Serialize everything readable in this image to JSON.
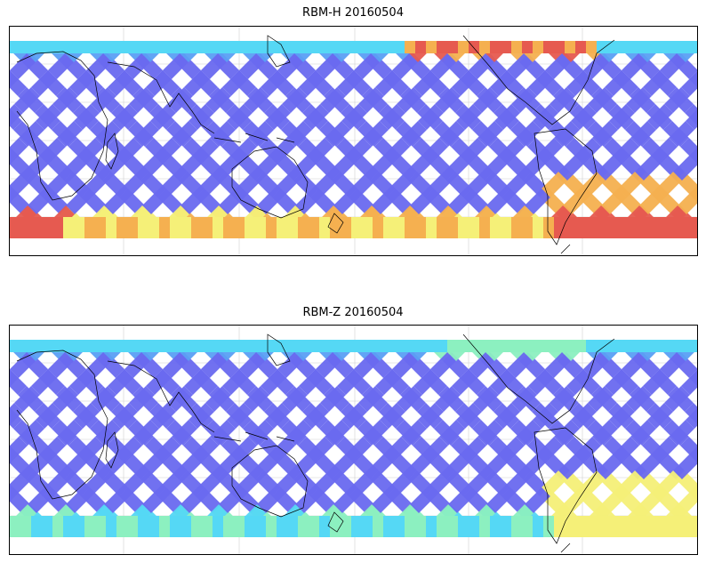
{
  "panels": [
    {
      "title": "RBM-H 20160504",
      "intensity": "high"
    },
    {
      "title": "RBM-Z 20160504",
      "intensity": "low"
    }
  ],
  "colormap": [
    "#6a6af0",
    "#5aa0f5",
    "#55d8f5",
    "#8cf0c0",
    "#f5f078",
    "#f5b050",
    "#e65a50"
  ]
}
